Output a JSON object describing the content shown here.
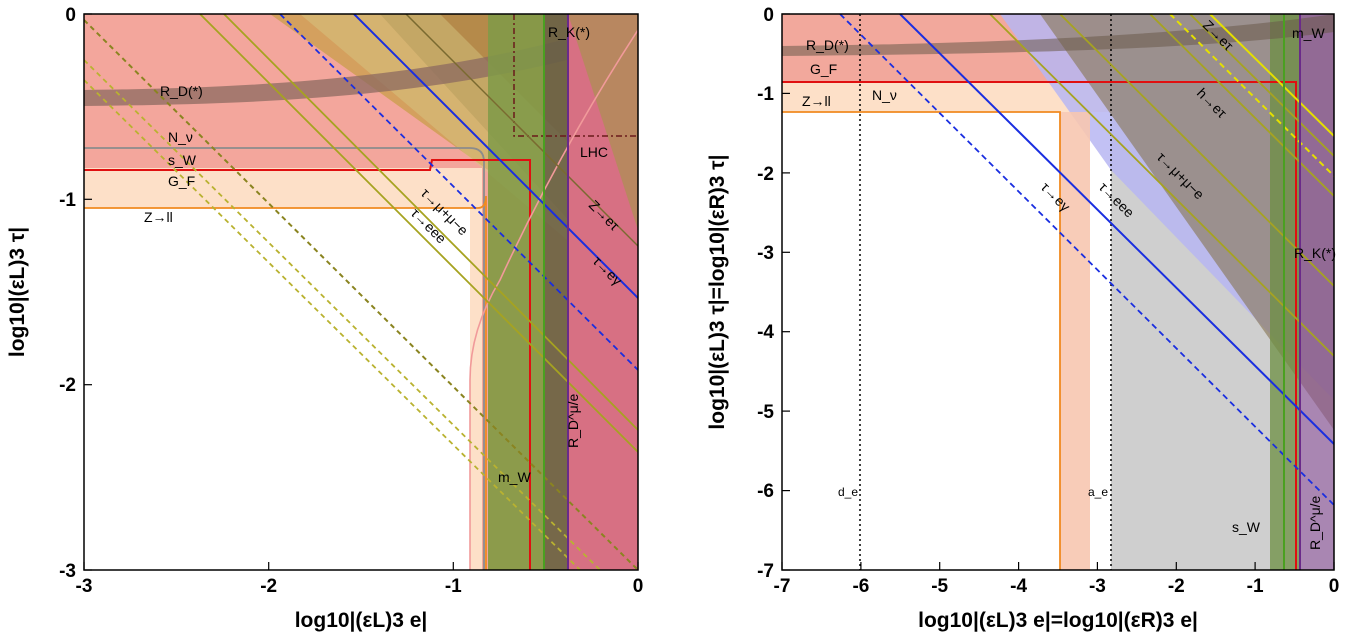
{
  "chart_data": [
    {
      "type": "area",
      "xlabel": "log10|(εL)3 e|",
      "ylabel": "log10|(εL)3 τ|",
      "xlim": [
        -3,
        0
      ],
      "ylim": [
        -3,
        0
      ],
      "xticks": [
        -3,
        -2,
        -1,
        0
      ],
      "yticks": [
        -3,
        -2,
        -1,
        0
      ],
      "grid": false,
      "regions": [
        {
          "name": "G_F / s_W (red-pink fill)",
          "x_from": -0.93,
          "y_from": -0.8,
          "color": "#f1a59c"
        },
        {
          "name": "Z→ll (light orange fill)",
          "x_from": -0.8,
          "y_from": -1.05,
          "color": "#fde2c9"
        },
        {
          "name": "R_D^(*) band",
          "x_from": -3,
          "y_from": -0.48,
          "y_to": -0.38,
          "color": "#a07a70"
        },
        {
          "name": "m_W vertical band",
          "x_from": -0.78,
          "x_to": -0.6,
          "color": "#8aa050"
        },
        {
          "name": "R_K(*) vertical band",
          "x_from": -0.49,
          "x_to": -0.37,
          "color": "#6f6b4a"
        },
        {
          "name": "R_D^μ/e (pink)",
          "x_from": -0.37,
          "x_to": 0,
          "color": "#d67484"
        },
        {
          "name": "τ→eγ region (olive/brown)",
          "diagonal_intercept": -1.55,
          "color": "#b9894a"
        }
      ],
      "lines": [
        {
          "name": "τ→eγ",
          "slope": -1,
          "intercept": -1.53,
          "color": "#1a2ee0",
          "style": "solid"
        },
        {
          "name": "τ→eγ (future)",
          "slope": -1,
          "intercept": -1.83,
          "color": "#1a2ee0",
          "style": "dashed"
        },
        {
          "name": "τ→eee",
          "slope": -1,
          "intercept": -2.05,
          "color": "#a6a320",
          "style": "solid"
        },
        {
          "name": "τ→μ+μ−e",
          "slope": -1,
          "intercept": -1.9,
          "color": "#a6a320",
          "style": "solid"
        },
        {
          "name": "Z→eτ",
          "slope": -1,
          "intercept": -0.85,
          "color": "#7a6a30",
          "style": "solid"
        },
        {
          "name": "future olive dashed 1",
          "slope": -1,
          "intercept": -2.9,
          "color": "#8a8420",
          "style": "dashed"
        },
        {
          "name": "future olive dashed 2",
          "slope": -1,
          "intercept": -3.2,
          "color": "#b9b230",
          "style": "dashed"
        },
        {
          "name": "future olive dashed 3",
          "slope": -1,
          "intercept": -3.35,
          "color": "#b9b230",
          "style": "dashed"
        },
        {
          "name": "LHC",
          "x": -0.66,
          "y": -0.65,
          "color": "#6a1a1a",
          "style": "dash-dot"
        }
      ],
      "annotations": [
        "R_D(*)",
        "N_ν",
        "s_W",
        "G_F",
        "Z→ll",
        "τ→μ+μ−e",
        "τ→eee",
        "LHC",
        "Z→eτ",
        "τ→eγ",
        "m_W",
        "R_D^μ/e",
        "R_K(*)"
      ]
    },
    {
      "type": "area",
      "xlabel": "log10|(εL)3 e|=log10|(εR)3 e|",
      "ylabel": "log10|(εL)3 τ|=log10|(εR)3 τ|",
      "xlim": [
        -7,
        0
      ],
      "ylim": [
        -7,
        0
      ],
      "xticks": [
        -7,
        -6,
        -5,
        -4,
        -3,
        -2,
        -1,
        0
      ],
      "yticks": [
        -7,
        -6,
        -5,
        -4,
        -3,
        -2,
        -1,
        0
      ],
      "grid": false,
      "regions": [
        {
          "name": "R_D(*) / G_F (pink)",
          "x_from": -7,
          "y_from": -0.8,
          "color": "#f1a59c"
        },
        {
          "name": "Z→ll (light orange)",
          "x_from": -7,
          "y_from": -1.2,
          "y_to": -0.8,
          "color": "#fde2c9"
        },
        {
          "name": "a_e (grey)",
          "x_from": -2.8,
          "x_to": 0,
          "color": "#cfcfcf"
        },
        {
          "name": "τ→eγ (blue-violet)",
          "diagonal_intercept": -5.4,
          "color": "#b6b6f2"
        },
        {
          "name": "τ→μ+μ−e olive",
          "diagonal_intercept": -3.6,
          "color": "#8d8a52"
        },
        {
          "name": "m_W vertical",
          "x_from": -0.75,
          "x_to": -0.55,
          "color": "#6a8f40"
        },
        {
          "name": "R_K(*) vertical",
          "x_from": -0.42,
          "x_to": -0.37,
          "color": "#7b3e96"
        }
      ],
      "lines": [
        {
          "name": "τ→eγ",
          "slope": -1,
          "intercept": -5.45,
          "color": "#1a2ee0",
          "style": "solid"
        },
        {
          "name": "τ→eγ future",
          "slope": -1,
          "intercept": -6.2,
          "color": "#1a2ee0",
          "style": "dashed"
        },
        {
          "name": "τ→eee",
          "slope": -1,
          "intercept": -4.4,
          "color": "#a6a320",
          "style": "solid"
        },
        {
          "name": "τ→μ+μ−e",
          "slope": -1,
          "intercept": -3.6,
          "color": "#a6a320",
          "style": "solid"
        },
        {
          "name": "Z→eτ",
          "slope": -1,
          "intercept": -2.0,
          "color": "#a6a320",
          "style": "solid"
        },
        {
          "name": "h→eτ",
          "slope": -1,
          "intercept": -2.65,
          "color": "#a6a320",
          "style": "solid"
        },
        {
          "name": "yellow",
          "slope": -1,
          "intercept": -2.35,
          "color": "#e5e000",
          "style": "solid"
        },
        {
          "name": "yellow dashed",
          "slope": -1,
          "intercept": -2.85,
          "color": "#e5e000",
          "style": "dashed"
        },
        {
          "name": "d_e",
          "x": -6.0,
          "color": "#000",
          "style": "dotted"
        },
        {
          "name": "a_e",
          "x": -2.83,
          "color": "#000",
          "style": "dotted"
        }
      ],
      "annotations": [
        "R_D(*)",
        "G_F",
        "N_ν",
        "Z→ll",
        "Z→eτ",
        "m_W",
        "h→eτ",
        "τ→μ+μ−e",
        "τ→eee",
        "τ→eγ",
        "R_K(*)",
        "d_e",
        "a_e",
        "s_W",
        "R_D^μ/e"
      ]
    }
  ]
}
